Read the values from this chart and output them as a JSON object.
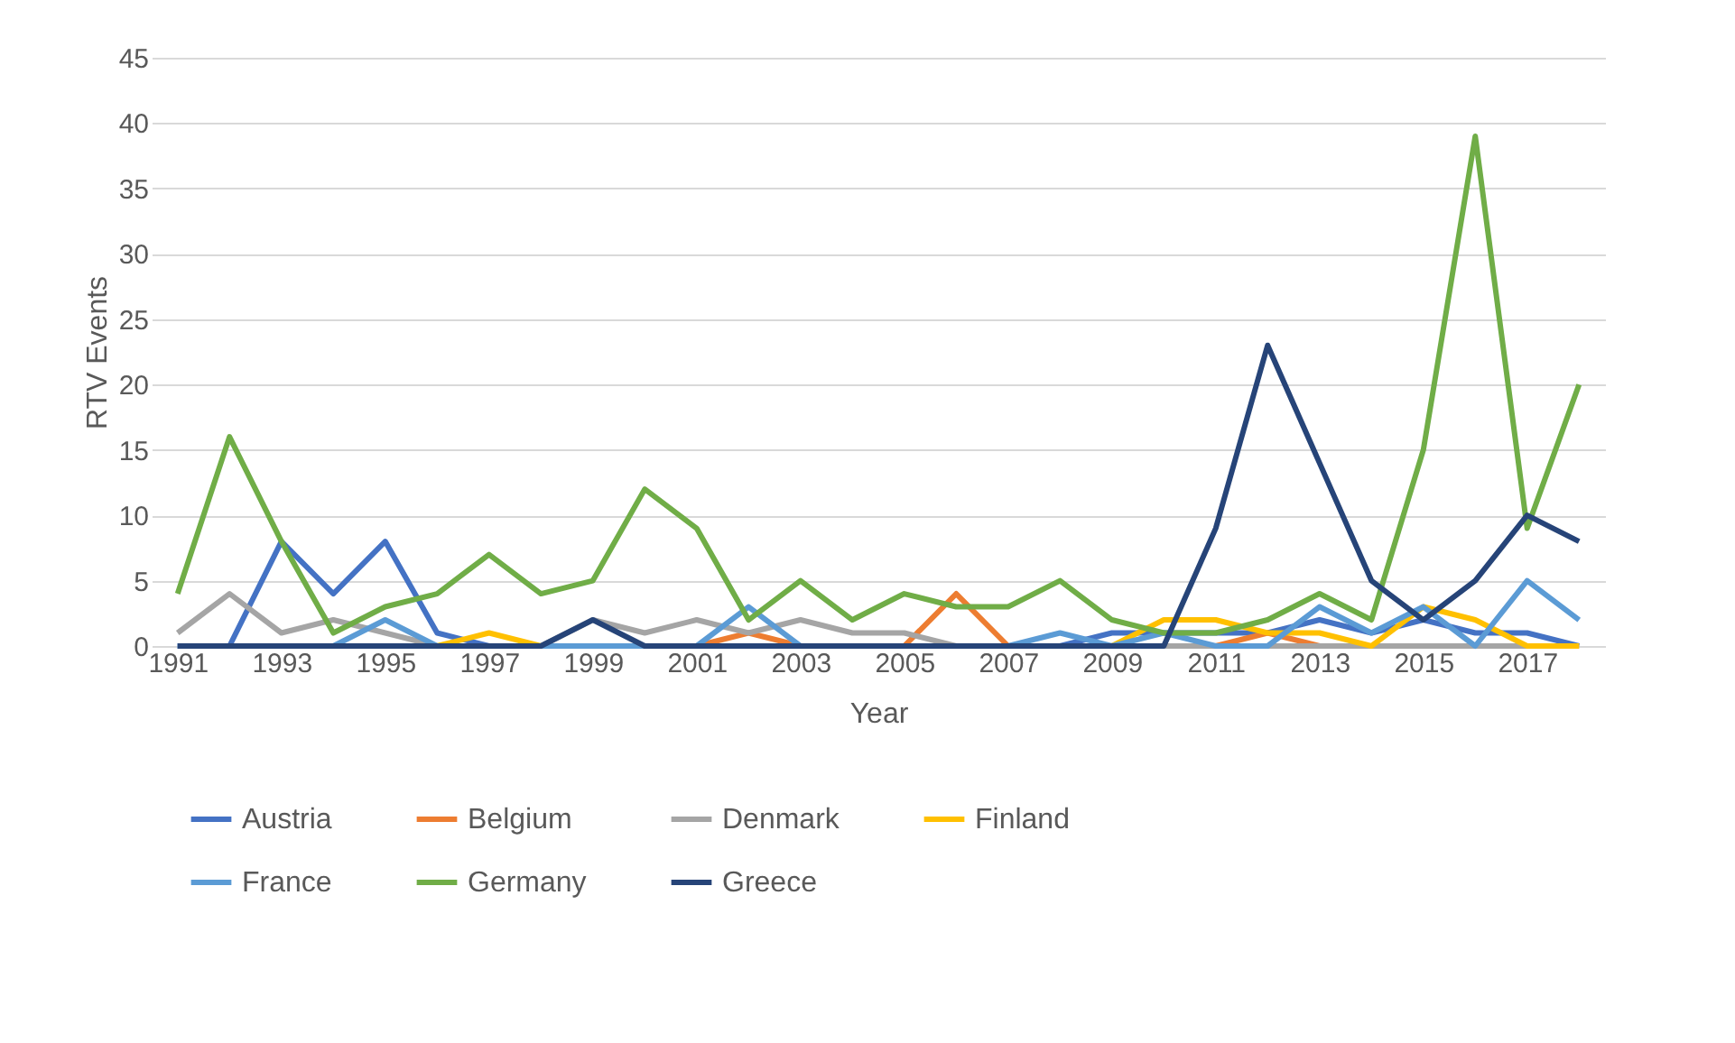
{
  "chart_data": {
    "type": "line",
    "xlabel": "Year",
    "ylabel": "RTV Events",
    "categories": [
      "1991",
      null,
      "1993",
      null,
      "1995",
      null,
      "1997",
      null,
      "1999",
      null,
      "2001",
      null,
      "2003",
      null,
      "2005",
      null,
      "2007",
      null,
      "2009",
      null,
      "2011",
      null,
      "2013",
      null,
      "2015",
      null,
      "2017",
      null
    ],
    "series": [
      {
        "name": "Austria",
        "color": "#4472c4",
        "values": [
          0,
          0,
          8,
          4,
          8,
          1,
          0,
          0,
          0,
          0,
          0,
          0,
          0,
          0,
          0,
          0,
          0,
          0,
          1,
          1,
          1,
          1,
          2,
          1,
          2,
          1,
          1,
          0
        ]
      },
      {
        "name": "Belgium",
        "color": "#ed7d31",
        "values": [
          null,
          null,
          null,
          null,
          null,
          null,
          null,
          null,
          null,
          null,
          0,
          1,
          0,
          null,
          0,
          4,
          0,
          null,
          null,
          null,
          0,
          1,
          0,
          null,
          null,
          null,
          null,
          null
        ]
      },
      {
        "name": "Denmark",
        "color": "#a5a5a5",
        "values": [
          1,
          4,
          1,
          2,
          1,
          0,
          0,
          0,
          2,
          1,
          2,
          1,
          2,
          1,
          1,
          0,
          0,
          0,
          0,
          0,
          0,
          0,
          0,
          0,
          0,
          0,
          0,
          0
        ]
      },
      {
        "name": "Finland",
        "color": "#ffc000",
        "values": [
          null,
          null,
          null,
          null,
          null,
          0,
          1,
          0,
          null,
          null,
          null,
          null,
          null,
          null,
          null,
          null,
          null,
          null,
          0,
          2,
          2,
          1,
          1,
          0,
          3,
          2,
          0,
          0
        ]
      },
      {
        "name": "France",
        "color": "#5b9bd5",
        "values": [
          0,
          0,
          0,
          0,
          2,
          0,
          0,
          0,
          0,
          0,
          0,
          3,
          0,
          0,
          0,
          0,
          0,
          1,
          0,
          1,
          0,
          0,
          3,
          1,
          3,
          0,
          5,
          2
        ]
      },
      {
        "name": "Germany",
        "color": "#70ad47",
        "values": [
          4,
          16,
          8,
          1,
          3,
          4,
          7,
          4,
          5,
          12,
          9,
          2,
          5,
          2,
          4,
          3,
          3,
          5,
          2,
          1,
          1,
          2,
          4,
          2,
          15,
          39,
          9,
          20
        ]
      },
      {
        "name": "Greece",
        "color": "#264478",
        "values": [
          0,
          0,
          0,
          0,
          0,
          0,
          0,
          0,
          2,
          0,
          0,
          0,
          0,
          0,
          0,
          0,
          0,
          0,
          0,
          0,
          9,
          23,
          14,
          5,
          2,
          5,
          10,
          8
        ]
      }
    ],
    "ylim": [
      0,
      45
    ],
    "yticks": [
      0,
      5,
      10,
      15,
      20,
      25,
      30,
      35,
      40,
      45
    ],
    "grid": "y",
    "legend": "bottom",
    "marker": "none",
    "line_style": "solid"
  }
}
